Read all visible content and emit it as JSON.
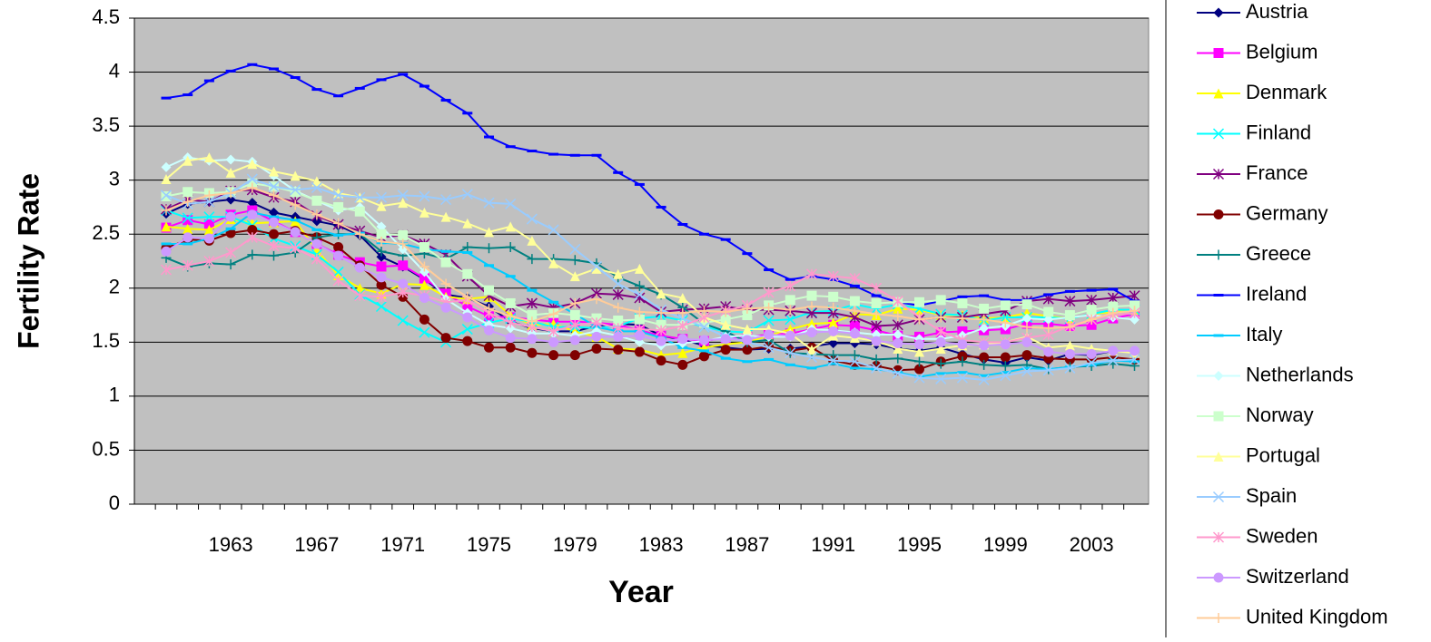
{
  "chart_data": {
    "type": "line",
    "x_label": "Year",
    "y_label": "Fertility Rate",
    "categories": [
      null,
      null,
      null,
      "1963",
      null,
      null,
      null,
      "1967",
      null,
      null,
      null,
      "1971",
      null,
      null,
      null,
      "1975",
      null,
      null,
      null,
      "1979",
      null,
      null,
      null,
      "1983",
      null,
      null,
      null,
      "1987",
      null,
      null,
      null,
      "1991",
      null,
      null,
      null,
      "1995",
      null,
      null,
      null,
      "1999",
      null,
      null,
      null,
      "2003",
      null,
      null
    ],
    "ylim": [
      0,
      4.5
    ],
    "yticks": [
      0,
      0.5,
      1,
      1.5,
      2,
      2.5,
      3,
      3.5,
      4,
      4.5
    ],
    "grid": true,
    "legend": "right",
    "series": [
      {
        "name": "Austria",
        "color": "#000080",
        "marker": "diamond",
        "values": [
          2.69,
          2.78,
          2.8,
          2.82,
          2.79,
          2.7,
          2.66,
          2.62,
          2.58,
          2.49,
          2.29,
          2.2,
          2.08,
          1.94,
          1.91,
          1.83,
          1.69,
          1.63,
          1.6,
          1.6,
          1.65,
          1.67,
          1.66,
          1.56,
          1.52,
          1.47,
          1.45,
          1.43,
          1.44,
          1.44,
          1.46,
          1.49,
          1.49,
          1.48,
          1.44,
          1.42,
          1.45,
          1.39,
          1.34,
          1.31,
          1.36,
          1.33,
          1.39,
          1.38,
          1.42,
          1.41
        ]
      },
      {
        "name": "Belgium",
        "color": "#FF00FF",
        "marker": "square",
        "values": [
          2.56,
          2.63,
          2.59,
          2.68,
          2.72,
          2.62,
          2.52,
          2.41,
          2.31,
          2.24,
          2.2,
          2.21,
          2.09,
          1.95,
          1.83,
          1.74,
          1.73,
          1.71,
          1.69,
          1.69,
          1.68,
          1.66,
          1.61,
          1.56,
          1.53,
          1.51,
          1.54,
          1.55,
          1.57,
          1.58,
          1.62,
          1.66,
          1.65,
          1.61,
          1.56,
          1.55,
          1.59,
          1.6,
          1.61,
          1.62,
          1.67,
          1.67,
          1.65,
          1.66,
          1.72,
          1.76
        ]
      },
      {
        "name": "Denmark",
        "color": "#FFFF00",
        "marker": "triangle",
        "values": [
          2.57,
          2.55,
          2.54,
          2.64,
          2.6,
          2.61,
          2.62,
          2.35,
          2.12,
          2.0,
          1.95,
          2.04,
          2.03,
          1.92,
          1.9,
          1.92,
          1.75,
          1.66,
          1.67,
          1.6,
          1.55,
          1.44,
          1.43,
          1.38,
          1.4,
          1.45,
          1.48,
          1.5,
          1.56,
          1.62,
          1.67,
          1.68,
          1.76,
          1.75,
          1.81,
          1.8,
          1.75,
          1.75,
          1.72,
          1.73,
          1.77,
          1.74,
          1.72,
          1.76,
          1.78,
          1.8
        ]
      },
      {
        "name": "Finland",
        "color": "#00FFFF",
        "marker": "x",
        "values": [
          2.72,
          2.65,
          2.66,
          2.66,
          2.58,
          2.46,
          2.39,
          2.31,
          2.15,
          1.94,
          1.83,
          1.7,
          1.59,
          1.5,
          1.62,
          1.68,
          1.72,
          1.69,
          1.64,
          1.64,
          1.63,
          1.65,
          1.72,
          1.74,
          1.7,
          1.64,
          1.6,
          1.59,
          1.7,
          1.71,
          1.78,
          1.79,
          1.85,
          1.81,
          1.85,
          1.81,
          1.76,
          1.75,
          1.7,
          1.73,
          1.73,
          1.73,
          1.72,
          1.76,
          1.8,
          1.8
        ]
      },
      {
        "name": "France",
        "color": "#800080",
        "marker": "star",
        "values": [
          2.73,
          2.82,
          2.8,
          2.9,
          2.91,
          2.84,
          2.8,
          2.67,
          2.59,
          2.53,
          2.47,
          2.49,
          2.41,
          2.31,
          2.11,
          1.93,
          1.83,
          1.86,
          1.82,
          1.86,
          1.95,
          1.94,
          1.91,
          1.78,
          1.8,
          1.81,
          1.83,
          1.8,
          1.8,
          1.79,
          1.77,
          1.77,
          1.73,
          1.65,
          1.66,
          1.71,
          1.73,
          1.73,
          1.76,
          1.79,
          1.88,
          1.9,
          1.88,
          1.89,
          1.91,
          1.93
        ]
      },
      {
        "name": "Germany",
        "color": "#800000",
        "marker": "circle",
        "values": [
          2.37,
          2.45,
          2.44,
          2.51,
          2.54,
          2.5,
          2.53,
          2.47,
          2.38,
          2.21,
          2.03,
          1.92,
          1.71,
          1.54,
          1.51,
          1.45,
          1.45,
          1.4,
          1.38,
          1.38,
          1.44,
          1.43,
          1.41,
          1.33,
          1.29,
          1.37,
          1.43,
          1.43,
          1.46,
          1.42,
          1.45,
          1.33,
          1.29,
          1.28,
          1.24,
          1.25,
          1.32,
          1.37,
          1.36,
          1.36,
          1.38,
          1.35,
          1.34,
          1.34,
          1.36,
          1.34
        ]
      },
      {
        "name": "Greece",
        "color": "#008080",
        "marker": "plus",
        "values": [
          2.28,
          2.2,
          2.23,
          2.22,
          2.31,
          2.3,
          2.33,
          2.47,
          2.5,
          2.5,
          2.34,
          2.3,
          2.32,
          2.27,
          2.38,
          2.37,
          2.38,
          2.27,
          2.27,
          2.26,
          2.23,
          2.1,
          2.02,
          1.94,
          1.82,
          1.67,
          1.6,
          1.5,
          1.52,
          1.4,
          1.39,
          1.38,
          1.38,
          1.34,
          1.35,
          1.32,
          1.3,
          1.32,
          1.29,
          1.28,
          1.29,
          1.25,
          1.27,
          1.28,
          1.3,
          1.28
        ]
      },
      {
        "name": "Ireland",
        "color": "#0000FF",
        "marker": "dash",
        "values": [
          3.76,
          3.79,
          3.92,
          4.01,
          4.07,
          4.03,
          3.95,
          3.84,
          3.78,
          3.85,
          3.93,
          3.98,
          3.87,
          3.74,
          3.62,
          3.4,
          3.31,
          3.27,
          3.24,
          3.23,
          3.23,
          3.07,
          2.96,
          2.75,
          2.59,
          2.5,
          2.45,
          2.32,
          2.17,
          2.08,
          2.11,
          2.08,
          2.02,
          1.93,
          1.87,
          1.84,
          1.88,
          1.92,
          1.93,
          1.89,
          1.89,
          1.94,
          1.97,
          1.98,
          1.99,
          1.88
        ]
      },
      {
        "name": "Italy",
        "color": "#00CCFF",
        "marker": "dash",
        "values": [
          2.41,
          2.41,
          2.46,
          2.55,
          2.7,
          2.66,
          2.63,
          2.54,
          2.49,
          2.51,
          2.42,
          2.41,
          2.36,
          2.34,
          2.33,
          2.21,
          2.11,
          1.98,
          1.87,
          1.76,
          1.64,
          1.6,
          1.6,
          1.54,
          1.45,
          1.42,
          1.35,
          1.32,
          1.34,
          1.29,
          1.26,
          1.3,
          1.26,
          1.25,
          1.22,
          1.18,
          1.21,
          1.22,
          1.19,
          1.22,
          1.26,
          1.25,
          1.27,
          1.29,
          1.33,
          1.32
        ]
      },
      {
        "name": "Netherlands",
        "color": "#CCFFFF",
        "marker": "diamond",
        "values": [
          3.12,
          3.21,
          3.18,
          3.19,
          3.17,
          3.04,
          2.9,
          2.81,
          2.72,
          2.75,
          2.57,
          2.36,
          2.15,
          1.9,
          1.77,
          1.66,
          1.63,
          1.58,
          1.58,
          1.56,
          1.6,
          1.56,
          1.5,
          1.47,
          1.49,
          1.51,
          1.55,
          1.56,
          1.55,
          1.55,
          1.62,
          1.61,
          1.59,
          1.57,
          1.57,
          1.53,
          1.53,
          1.56,
          1.63,
          1.65,
          1.72,
          1.71,
          1.73,
          1.75,
          1.73,
          1.71
        ]
      },
      {
        "name": "Norway",
        "color": "#CCFFCC",
        "marker": "square",
        "values": [
          2.85,
          2.89,
          2.88,
          2.89,
          2.97,
          2.94,
          2.89,
          2.81,
          2.75,
          2.71,
          2.5,
          2.49,
          2.38,
          2.24,
          2.13,
          1.98,
          1.86,
          1.75,
          1.77,
          1.75,
          1.72,
          1.7,
          1.71,
          1.66,
          1.66,
          1.68,
          1.71,
          1.75,
          1.84,
          1.89,
          1.93,
          1.92,
          1.88,
          1.86,
          1.87,
          1.87,
          1.89,
          1.86,
          1.81,
          1.84,
          1.85,
          1.78,
          1.75,
          1.8,
          1.83,
          1.84
        ]
      },
      {
        "name": "Portugal",
        "color": "#FFFF99",
        "marker": "triangle",
        "values": [
          3.01,
          3.18,
          3.21,
          3.07,
          3.15,
          3.08,
          3.04,
          2.99,
          2.88,
          2.84,
          2.76,
          2.79,
          2.7,
          2.66,
          2.6,
          2.52,
          2.57,
          2.44,
          2.23,
          2.11,
          2.18,
          2.13,
          2.18,
          1.95,
          1.91,
          1.73,
          1.66,
          1.62,
          1.62,
          1.58,
          1.43,
          1.56,
          1.54,
          1.51,
          1.44,
          1.41,
          1.44,
          1.47,
          1.48,
          1.5,
          1.55,
          1.45,
          1.47,
          1.44,
          1.42,
          1.4
        ]
      },
      {
        "name": "Spain",
        "color": "#99CCFF",
        "marker": "x",
        "values": [
          2.86,
          2.78,
          2.8,
          2.88,
          3.01,
          2.94,
          2.91,
          2.93,
          2.86,
          2.84,
          2.84,
          2.86,
          2.85,
          2.82,
          2.87,
          2.79,
          2.78,
          2.64,
          2.54,
          2.36,
          2.2,
          2.04,
          1.94,
          1.8,
          1.72,
          1.64,
          1.55,
          1.5,
          1.45,
          1.4,
          1.36,
          1.33,
          1.32,
          1.26,
          1.21,
          1.17,
          1.16,
          1.17,
          1.15,
          1.19,
          1.23,
          1.24,
          1.26,
          1.31,
          1.33,
          1.34
        ]
      },
      {
        "name": "Sweden",
        "color": "#FF99CC",
        "marker": "star",
        "values": [
          2.17,
          2.21,
          2.25,
          2.33,
          2.47,
          2.39,
          2.37,
          2.27,
          2.07,
          1.93,
          1.92,
          1.96,
          1.93,
          1.87,
          1.89,
          1.77,
          1.68,
          1.64,
          1.6,
          1.66,
          1.68,
          1.63,
          1.62,
          1.61,
          1.65,
          1.73,
          1.79,
          1.84,
          1.96,
          2.02,
          2.13,
          2.11,
          2.09,
          2.0,
          1.88,
          1.73,
          1.6,
          1.52,
          1.5,
          1.5,
          1.54,
          1.57,
          1.65,
          1.71,
          1.75,
          1.77
        ]
      },
      {
        "name": "Switzerland",
        "color": "#CC99FF",
        "marker": "circle",
        "values": [
          2.34,
          2.47,
          2.46,
          2.66,
          2.68,
          2.61,
          2.52,
          2.41,
          2.3,
          2.19,
          2.1,
          2.04,
          1.91,
          1.82,
          1.73,
          1.61,
          1.54,
          1.53,
          1.5,
          1.52,
          1.55,
          1.55,
          1.56,
          1.51,
          1.53,
          1.52,
          1.53,
          1.52,
          1.57,
          1.56,
          1.59,
          1.6,
          1.58,
          1.51,
          1.49,
          1.48,
          1.5,
          1.48,
          1.47,
          1.48,
          1.5,
          1.41,
          1.39,
          1.39,
          1.42,
          1.42
        ]
      },
      {
        "name": "United Kingdom",
        "color": "#FFCC99",
        "marker": "plus",
        "values": [
          2.72,
          2.8,
          2.86,
          2.88,
          2.93,
          2.86,
          2.77,
          2.68,
          2.6,
          2.5,
          2.43,
          2.41,
          2.2,
          2.04,
          1.92,
          1.81,
          1.74,
          1.69,
          1.76,
          1.86,
          1.9,
          1.82,
          1.78,
          1.77,
          1.77,
          1.79,
          1.78,
          1.81,
          1.82,
          1.8,
          1.83,
          1.82,
          1.79,
          1.76,
          1.74,
          1.71,
          1.73,
          1.72,
          1.71,
          1.68,
          1.64,
          1.63,
          1.64,
          1.71,
          1.77,
          1.79
        ]
      }
    ]
  }
}
